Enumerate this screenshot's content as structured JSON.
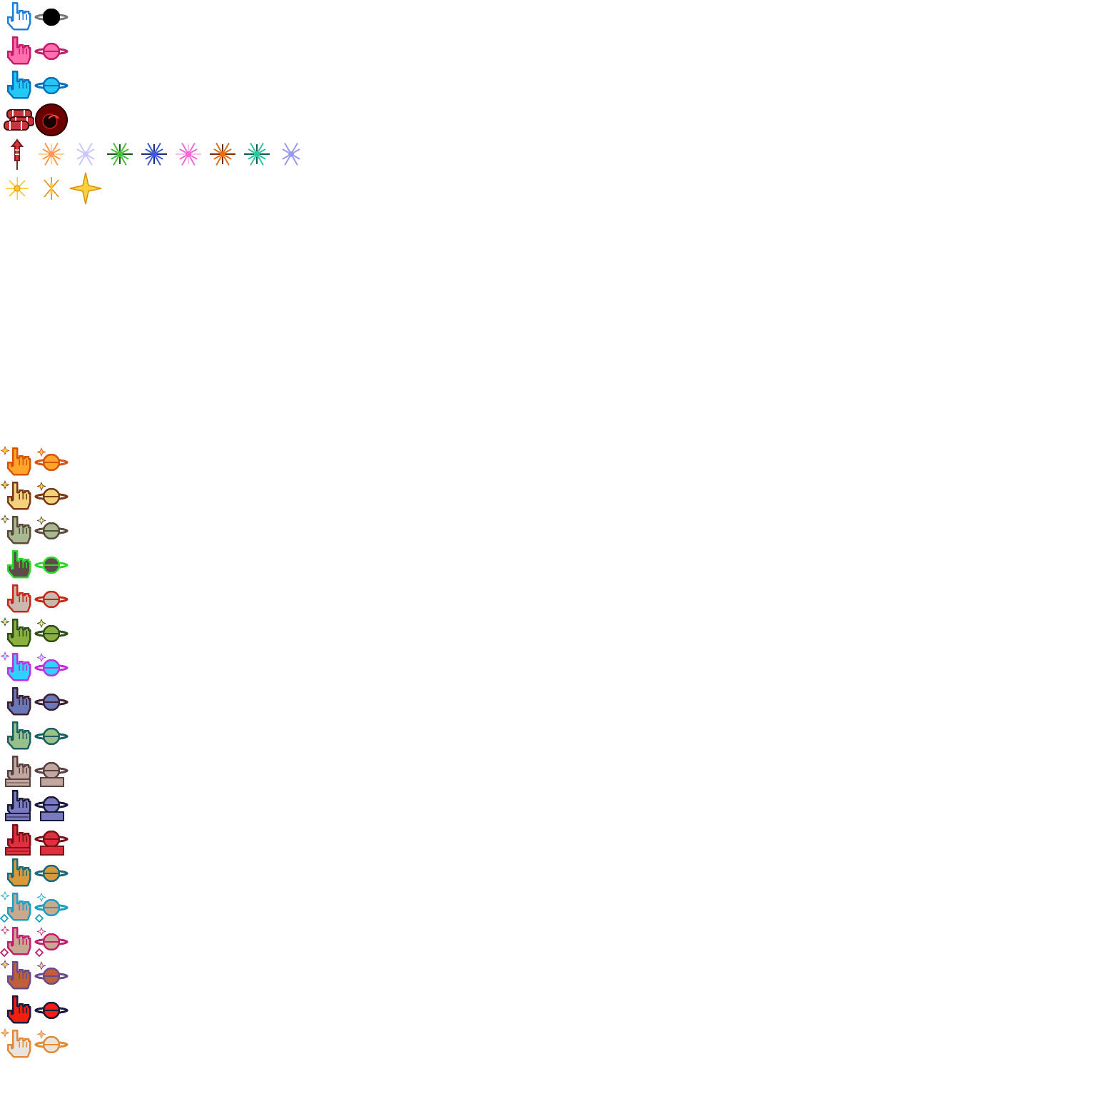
{
  "sheet": {
    "background": "#ffffff",
    "top_rows": [
      {
        "name": "cursor-set-classic-blue",
        "items": [
          {
            "kind": "hand-cursor",
            "fill": "#ffffff",
            "outline": "#1e7fd8"
          },
          {
            "kind": "orbit-cursor",
            "fill": "#000000",
            "outline": "#000000",
            "ring": "#7a7a7a"
          }
        ]
      },
      {
        "name": "cursor-set-pink",
        "items": [
          {
            "kind": "hand-cursor",
            "fill": "#ff6fae",
            "outline": "#c41c6b"
          },
          {
            "kind": "orbit-cursor",
            "fill": "#ff6fae",
            "outline": "#c41c6b",
            "ring": "#c41c6b"
          }
        ]
      },
      {
        "name": "cursor-set-cyan",
        "items": [
          {
            "kind": "hand-cursor",
            "fill": "#23c9f2",
            "outline": "#0a6fbf"
          },
          {
            "kind": "orbit-cursor",
            "fill": "#23c9f2",
            "outline": "#0a6fbf",
            "ring": "#0a6fbf"
          }
        ]
      },
      {
        "name": "item-row-special",
        "items": [
          {
            "kind": "dynamite-bundle",
            "fill": "#c8363c",
            "outline": "#3b1012"
          },
          {
            "kind": "dark-orb",
            "fill": "#6a0000",
            "outline": "#2b0000"
          }
        ]
      },
      {
        "name": "fireworks-row",
        "items": [
          {
            "kind": "rocket",
            "fill": "#d7343c",
            "outline": "#7b1a1f"
          },
          {
            "kind": "burst",
            "fill": "#ff9a4a",
            "outline": "#ffd0a0"
          },
          {
            "kind": "burst",
            "fill": "#c9c9ff",
            "outline": "#ffffff"
          },
          {
            "kind": "burst",
            "fill": "#48c03a",
            "outline": "#0f5a1a"
          },
          {
            "kind": "burst",
            "fill": "#3a5ad8",
            "outline": "#1a2a7a"
          },
          {
            "kind": "burst",
            "fill": "#f06ad8",
            "outline": "#ffc0f0"
          },
          {
            "kind": "burst",
            "fill": "#e0701a",
            "outline": "#7a2a00"
          },
          {
            "kind": "burst",
            "fill": "#30c4a0",
            "outline": "#0a6050"
          },
          {
            "kind": "burst",
            "fill": "#9a9af0",
            "outline": "#ffffff"
          }
        ]
      },
      {
        "name": "sparkle-row",
        "items": [
          {
            "kind": "sparkle-small",
            "fill": "#ffc830",
            "outline": "#e08a00"
          },
          {
            "kind": "sparkle-cross",
            "fill": "#ffc830",
            "outline": "#e08a00"
          },
          {
            "kind": "sparkle-star",
            "fill": "#ffd040",
            "outline": "#d89000"
          }
        ]
      }
    ],
    "bottom_rows": [
      {
        "name": "cursor-set-orange-sparkle",
        "hand_fill": "#ffa52a",
        "outline": "#d8540a",
        "ring": "#d8540a",
        "sparkle": true,
        "sparkle_color": "#ffd040",
        "base": false
      },
      {
        "name": "cursor-set-gold-sparkle",
        "hand_fill": "#f2d27a",
        "outline": "#7a3a18",
        "ring": "#7a3a18",
        "sparkle": true,
        "sparkle_color": "#ffd040",
        "base": false
      },
      {
        "name": "cursor-set-sage-sparkle",
        "hand_fill": "#a8b890",
        "outline": "#5a4a3a",
        "ring": "#5a4a3a",
        "sparkle": true,
        "sparkle_color": "#f2e6a0",
        "base": false
      },
      {
        "name": "cursor-set-dark-green",
        "hand_fill": "#5e4a48",
        "outline": "#2ed82e",
        "ring": "#2ed82e",
        "sparkle": false,
        "sparkle_color": "#ffffff",
        "base": false
      },
      {
        "name": "cursor-set-stone-red",
        "hand_fill": "#c8b8b0",
        "outline": "#c8281a",
        "ring": "#c8281a",
        "sparkle": false,
        "sparkle_color": "#ffffff",
        "base": false
      },
      {
        "name": "cursor-set-olive-sparkle",
        "hand_fill": "#8ab040",
        "outline": "#2e5018",
        "ring": "#2e5018",
        "sparkle": true,
        "sparkle_color": "#ffe890",
        "base": false
      },
      {
        "name": "cursor-set-cyan-magenta",
        "hand_fill": "#30d0ff",
        "outline": "#c030e0",
        "ring": "#c030e0",
        "sparkle": true,
        "sparkle_color": "#a0f0ff",
        "base": false
      },
      {
        "name": "cursor-set-indigo",
        "hand_fill": "#6a78b8",
        "outline": "#3a2030",
        "ring": "#3a2030",
        "sparkle": false,
        "sparkle_color": "#ffffff",
        "base": false
      },
      {
        "name": "cursor-set-mint",
        "hand_fill": "#9ac08a",
        "outline": "#1a6060",
        "ring": "#1a6060",
        "sparkle": false,
        "sparkle_color": "#ffffff",
        "base": false
      },
      {
        "name": "cursor-set-taupe-base",
        "hand_fill": "#c0a8a0",
        "outline": "#5a4040",
        "ring": "#5a4040",
        "sparkle": false,
        "sparkle_color": "#ffffff",
        "base": true
      },
      {
        "name": "cursor-set-periwinkle-base",
        "hand_fill": "#7a7ac0",
        "outline": "#1a1a3a",
        "ring": "#1a1a3a",
        "sparkle": false,
        "sparkle_color": "#ffffff",
        "base": true
      },
      {
        "name": "cursor-set-crimson-base",
        "hand_fill": "#e03040",
        "outline": "#7a1018",
        "ring": "#7a1018",
        "sparkle": false,
        "sparkle_color": "#ffffff",
        "base": true
      },
      {
        "name": "cursor-set-amber-teal",
        "hand_fill": "#d89a3a",
        "outline": "#1a6a7a",
        "ring": "#1a6a7a",
        "sparkle": false,
        "sparkle_color": "#ffffff",
        "base": false
      },
      {
        "name": "cursor-set-tan-cyan-gem",
        "hand_fill": "#c8a890",
        "outline": "#1aa0c0",
        "ring": "#1aa0c0",
        "sparkle": true,
        "sparkle_color": "#ffffff",
        "base": false
      },
      {
        "name": "cursor-set-tan-pink-gem",
        "hand_fill": "#c8a890",
        "outline": "#c02070",
        "ring": "#c02070",
        "sparkle": true,
        "sparkle_color": "#ffffff",
        "base": false
      },
      {
        "name": "cursor-set-rust-sparkle",
        "hand_fill": "#c0603a",
        "outline": "#6a4a8a",
        "ring": "#6a4a8a",
        "sparkle": true,
        "sparkle_color": "#ffd060",
        "base": false
      },
      {
        "name": "cursor-set-red-navy",
        "hand_fill": "#f02010",
        "outline": "#1a1a3a",
        "ring": "#1a1a3a",
        "sparkle": false,
        "sparkle_color": "#ffffff",
        "base": false
      },
      {
        "name": "cursor-set-white-sparkle",
        "hand_fill": "#e8e4e0",
        "outline": "#e08a3a",
        "ring": "#e08a3a",
        "sparkle": true,
        "sparkle_color": "#f0c080",
        "base": false
      }
    ]
  }
}
